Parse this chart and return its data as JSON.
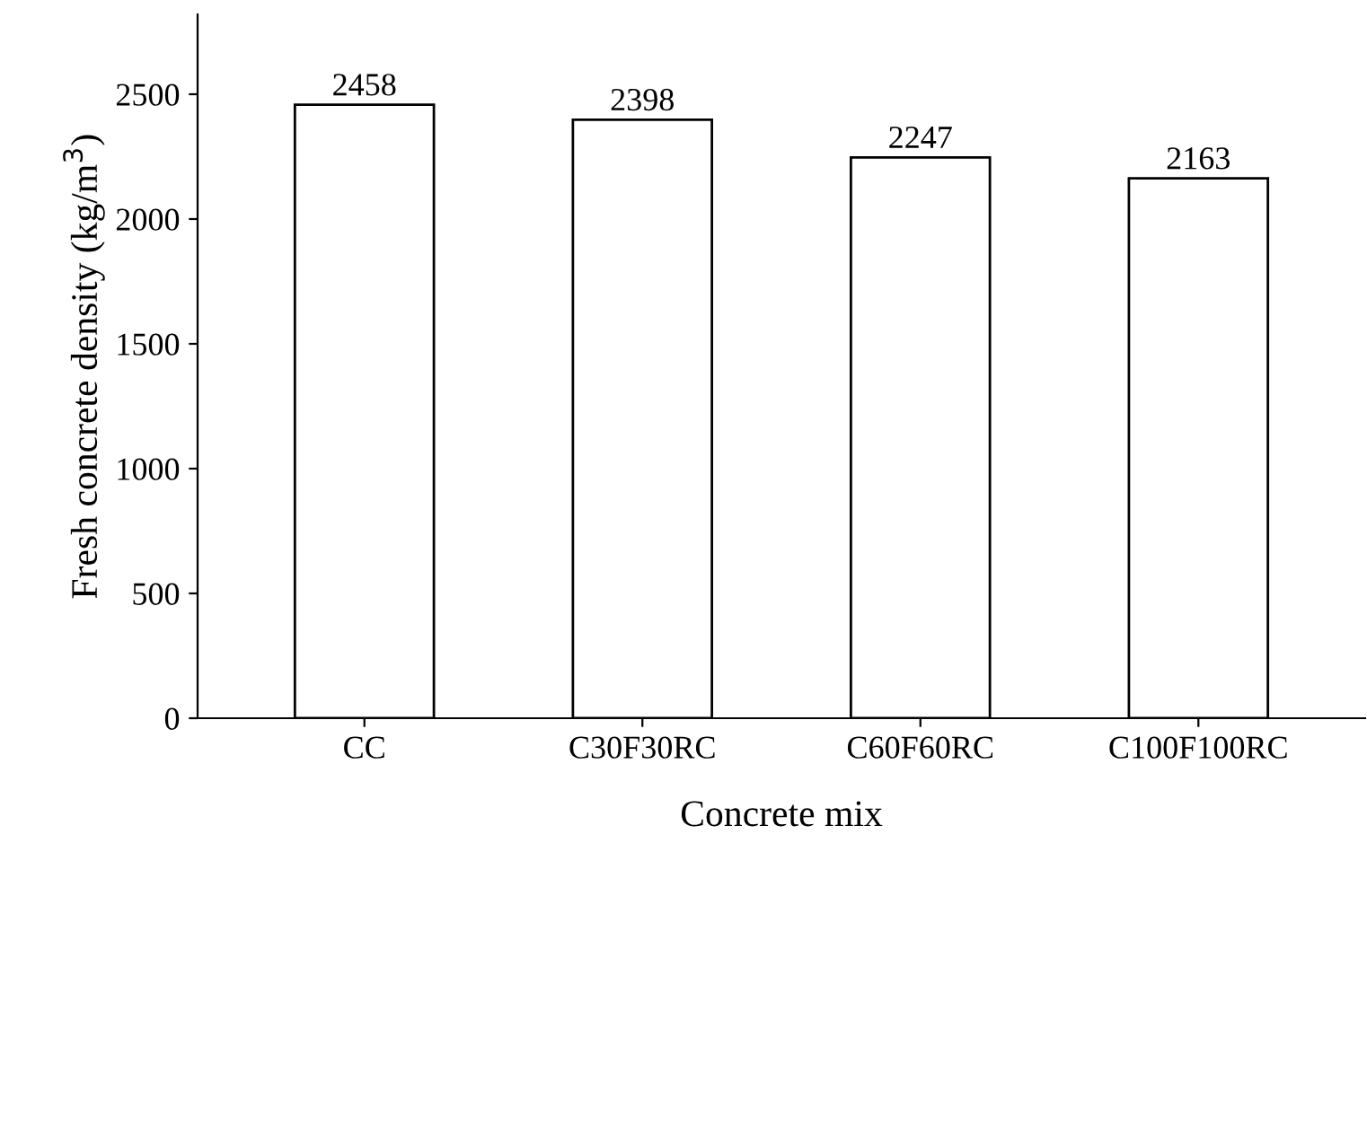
{
  "chart_data": {
    "type": "bar",
    "xlabel": "Concrete mix",
    "ylabel": "Fresh concrete density (kg/m$^{3}$)",
    "categories": [
      "CC",
      "C30F30RC",
      "C60F60RC",
      "C100F100RC"
    ],
    "values": [
      2458,
      2398,
      2247,
      2163
    ],
    "color": "#ffffff",
    "ylim": [
      0,
      2820
    ],
    "yticks": [
      0,
      500,
      1000,
      1500,
      2000,
      2500
    ],
    "data_labels": true,
    "grid": false,
    "legend": false
  }
}
